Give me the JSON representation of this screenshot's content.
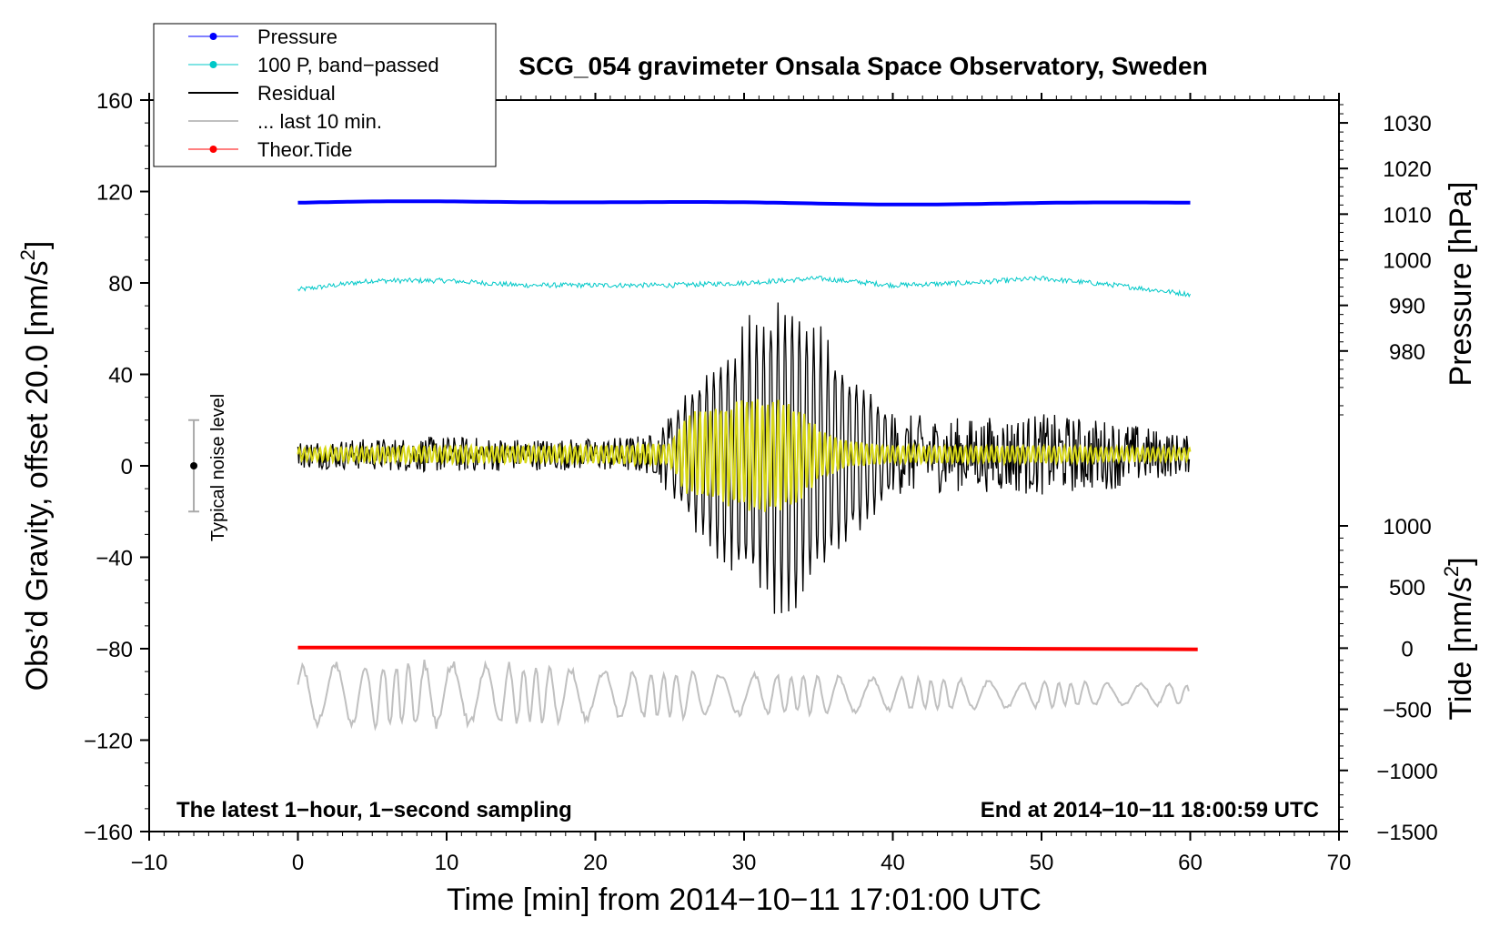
{
  "chart_data": {
    "type": "line",
    "title": "SCG_054 gravimeter Onsala Space Observatory, Sweden",
    "xlabel": "Time [min] from 2014−10−11 17:01:00 UTC",
    "ylabel_left": "Obs’d Gravity, offset 20.0 [nm/s",
    "ylabel_left_sup": "2",
    "ylabel_left_end": "]",
    "ylabel_right_pressure": "Pressure [hPa]",
    "ylabel_right_tide": "Tide [nm/s",
    "ylabel_right_tide_sup": "2",
    "ylabel_right_tide_end": "]",
    "xlim": [
      -10,
      70
    ],
    "ylim_left": [
      -160,
      160
    ],
    "pressure_range_hPa": [
      965,
      1035
    ],
    "tide_range": [
      -1500,
      1000
    ],
    "x_ticks": [
      "−10",
      "0",
      "10",
      "20",
      "30",
      "40",
      "50",
      "60",
      "70"
    ],
    "y_ticks_left": [
      "160",
      "120",
      "80",
      "40",
      "0",
      "−40",
      "−80",
      "−120",
      "−160"
    ],
    "pressure_ticks": [
      "1030",
      "1020",
      "1010",
      "1000",
      "990",
      "980"
    ],
    "tide_ticks": [
      "1000",
      "500",
      "0",
      "−500",
      "−1000",
      "−1500"
    ],
    "legend": [
      {
        "label": "Pressure",
        "color": "#0000ff",
        "marker": true
      },
      {
        "label": "100 P, band−passed",
        "color": "#00c8c8",
        "marker": true
      },
      {
        "label": "Residual",
        "color": "#000000",
        "marker": false
      },
      {
        "label": "... last 10 min.",
        "color": "#c0c0c0",
        "marker": false
      },
      {
        "label": "Theor.Tide",
        "color": "#ff0000",
        "marker": true
      }
    ],
    "annotations": {
      "bottom_left": "The latest 1−hour, 1−second sampling",
      "bottom_right": "End at 2014−10−11 18:00:59 UTC",
      "noise_label": "Typical noise level"
    },
    "noise_bar": {
      "x": -7,
      "y_center": 0,
      "y_low": -20,
      "y_high": 20
    },
    "series": [
      {
        "name": "Pressure",
        "axis": "pressure_hPa",
        "x_range": [
          0,
          60
        ],
        "approx_value": 1012.5,
        "color": "#0000ff"
      },
      {
        "name": "100 P, band−passed",
        "axis": "gravity",
        "x_range": [
          0,
          60
        ],
        "color": "#00c8c8",
        "x": [
          0,
          5,
          10,
          15,
          20,
          25,
          30,
          35,
          40,
          45,
          50,
          55,
          60
        ],
        "values": [
          77,
          81,
          81,
          79,
          79,
          79,
          80,
          82,
          79,
          80,
          82,
          79,
          75
        ]
      },
      {
        "name": "Residual",
        "axis": "gravity",
        "x_range": [
          0,
          60
        ],
        "color": "#000000",
        "baseline": 5,
        "envelope_x": [
          0,
          5,
          10,
          15,
          20,
          24,
          26,
          28,
          30,
          32,
          33.5,
          35,
          37,
          40,
          45,
          50,
          55,
          60
        ],
        "envelope_amp": [
          6,
          7,
          8,
          7,
          7,
          9,
          28,
          45,
          60,
          70,
          72,
          58,
          40,
          18,
          16,
          18,
          15,
          8
        ]
      },
      {
        "name": "Residual filtered",
        "axis": "gravity",
        "x_range": [
          0,
          60
        ],
        "color": "#d8d818",
        "baseline": 5,
        "envelope_x": [
          0,
          10,
          20,
          25,
          26,
          28,
          30,
          33,
          35,
          37,
          40,
          50,
          60
        ],
        "envelope_amp": [
          3,
          4,
          4,
          5,
          18,
          22,
          26,
          26,
          12,
          6,
          4,
          4,
          3
        ]
      },
      {
        "name": "... last 10 min.",
        "axis": "gravity",
        "x_range": [
          0,
          60
        ],
        "color": "#c0c0c0",
        "baseline": -100,
        "envelope_x": [
          0,
          10,
          20,
          30,
          40,
          50,
          60
        ],
        "envelope_amp": [
          14,
          16,
          12,
          10,
          8,
          6,
          5
        ]
      },
      {
        "name": "Theor.Tide",
        "axis": "tide",
        "x_range": [
          0,
          60.5
        ],
        "x": [
          0,
          20,
          30,
          40,
          50,
          60.5
        ],
        "values": [
          5,
          5,
          3,
          0,
          -5,
          -10
        ],
        "color": "#ff0000"
      }
    ]
  }
}
